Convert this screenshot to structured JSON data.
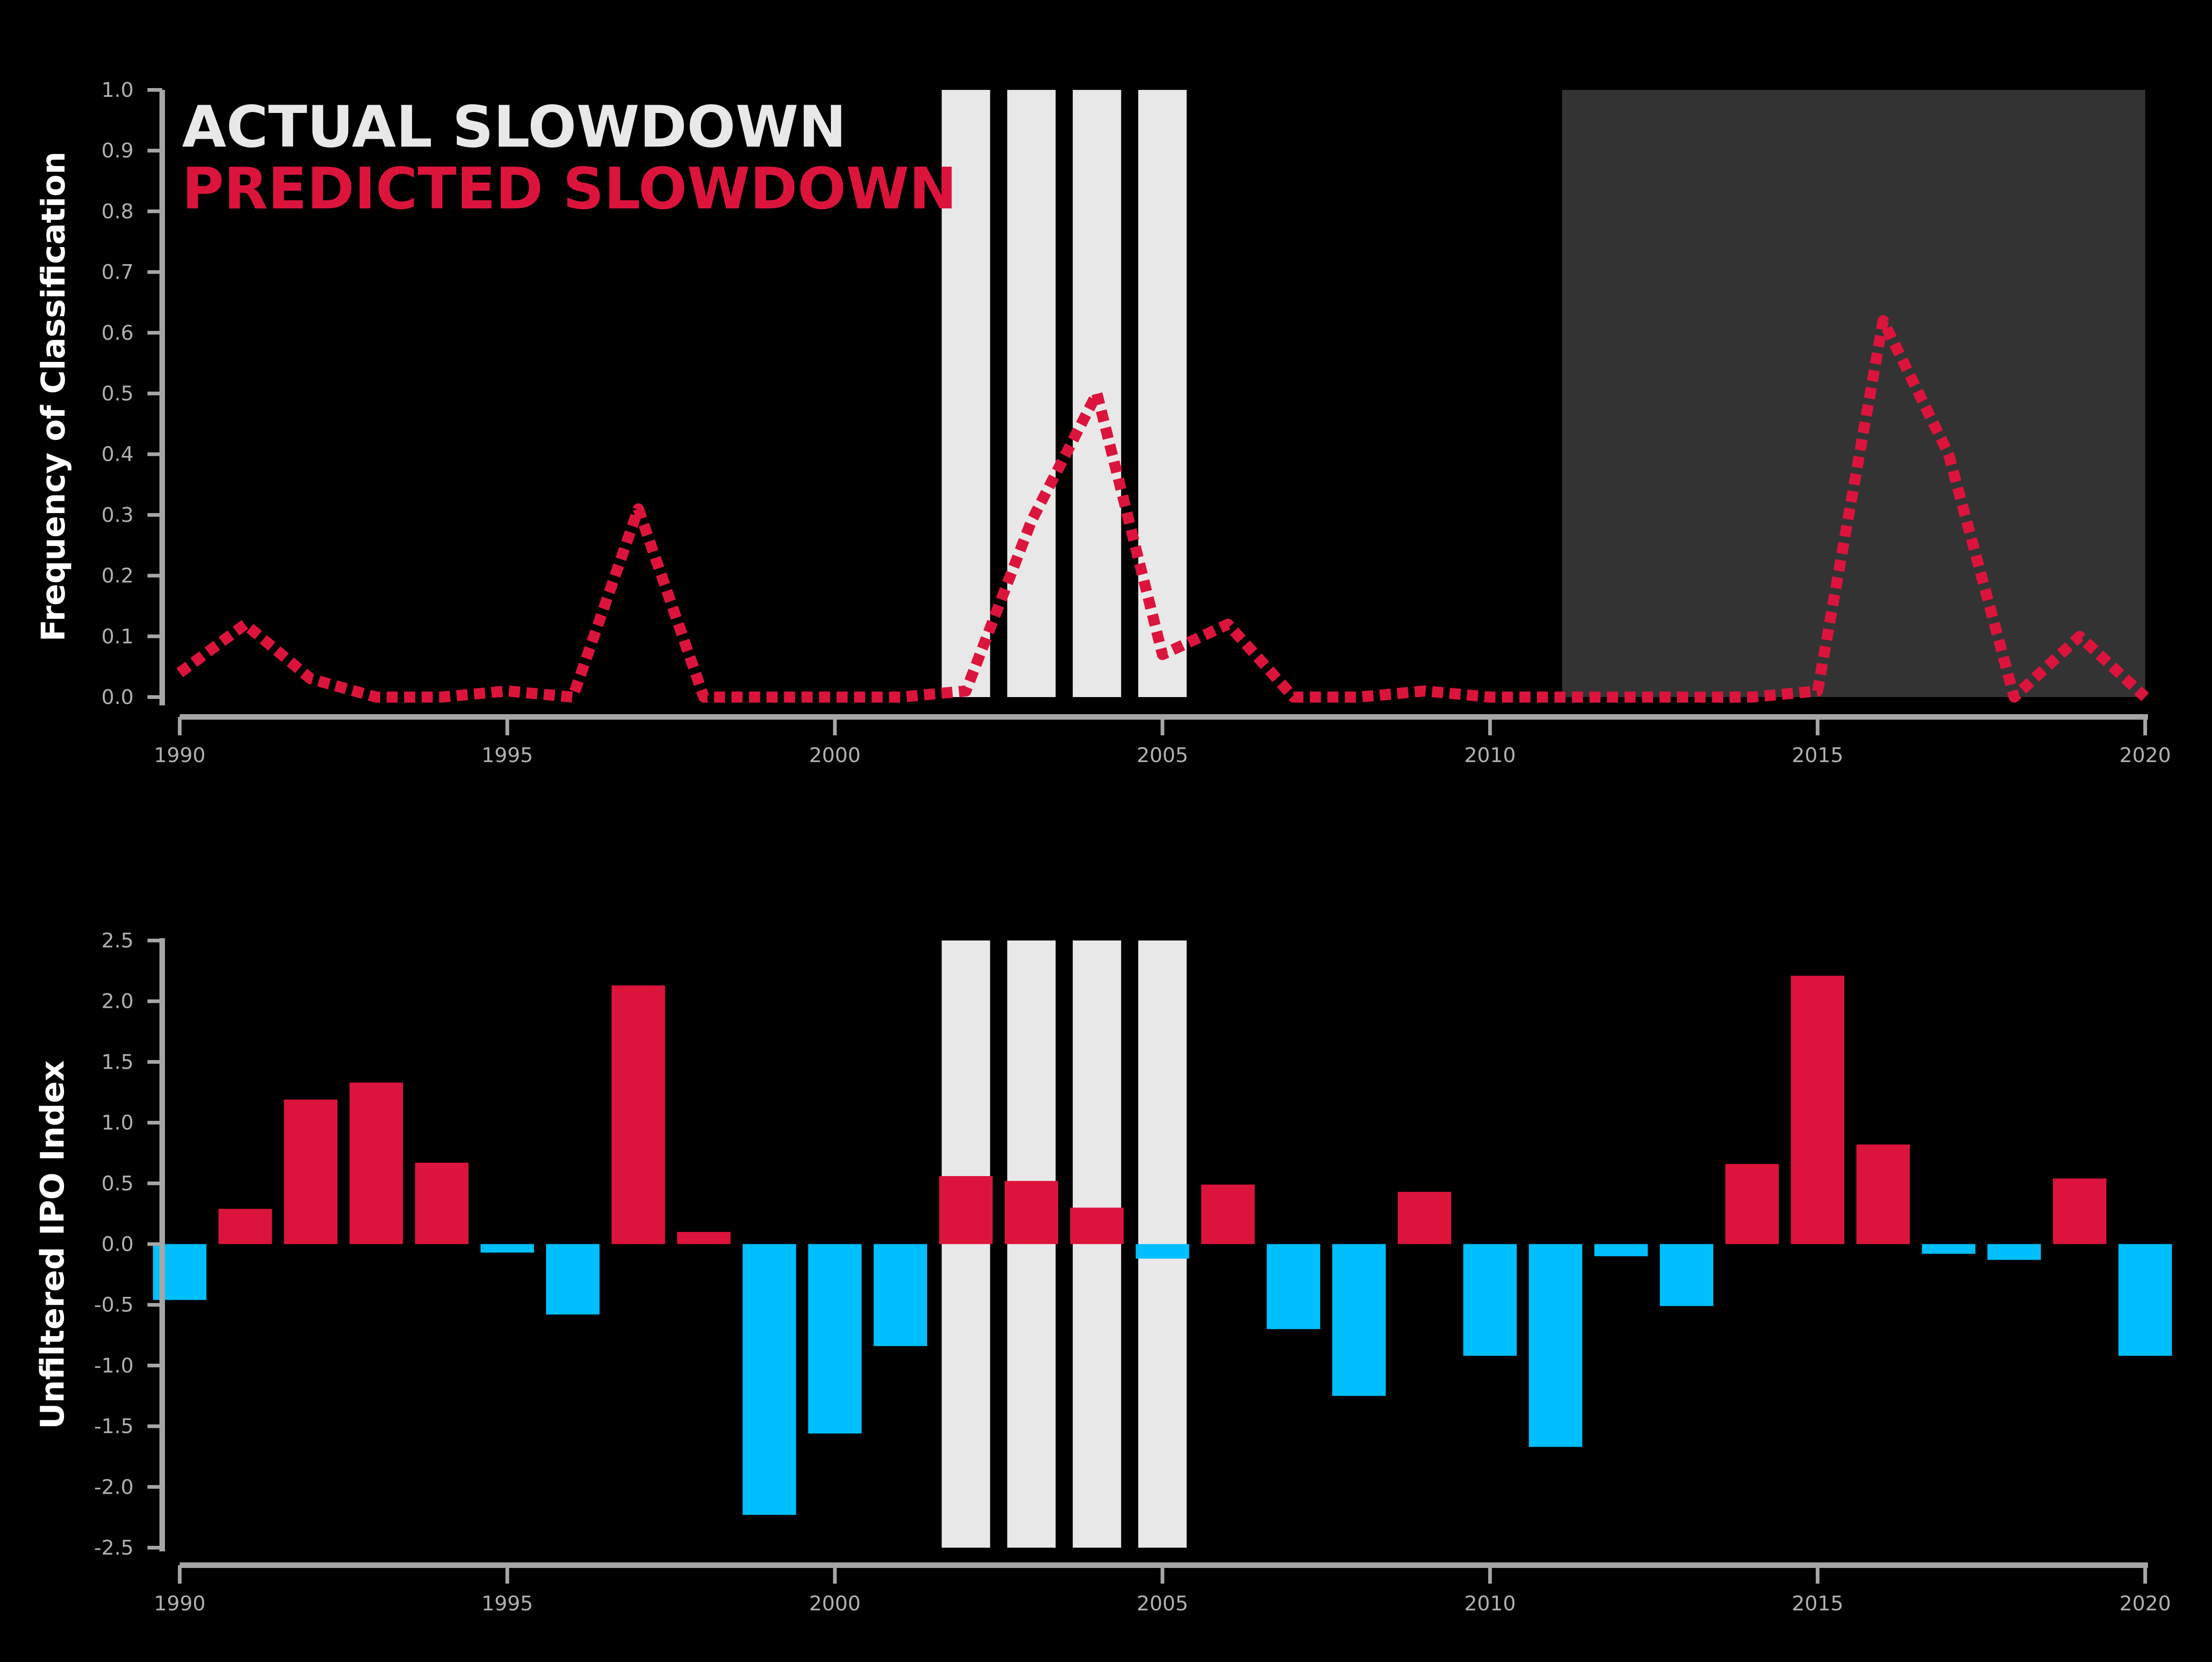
{
  "colors": {
    "background": "#000000",
    "axis": "#a6a6a6",
    "actual_slowdown": "#e8e8e8",
    "predicted_slowdown": "#dc143c",
    "forecast_region": "#333333",
    "positive_bar": "#dc143c",
    "negative_bar": "#00bfff"
  },
  "chart_data": [
    {
      "type": "line",
      "title": "",
      "xlabel": "",
      "ylabel": "Frequency of Classification",
      "xlim": [
        1990,
        2020
      ],
      "ylim": [
        0.0,
        1.0
      ],
      "x_ticks": [
        "1990",
        "1995",
        "2000",
        "2005",
        "2010",
        "2015",
        "2020"
      ],
      "y_ticks": [
        "0.0",
        "0.1",
        "0.2",
        "0.3",
        "0.4",
        "0.5",
        "0.6",
        "0.7",
        "0.8",
        "0.9",
        "1.0"
      ],
      "grid": false,
      "legend": {
        "position": "top-left",
        "entries": [
          "ACTUAL SLOWDOWN",
          "PREDICTED SLOWDOWN"
        ]
      },
      "actual_slowdown_years": [
        2002,
        2003,
        2004,
        2005
      ],
      "shaded_range": [
        2011.1,
        2020
      ],
      "series": [
        {
          "name": "PREDICTED SLOWDOWN",
          "style": "dotted",
          "x": [
            1990,
            1991,
            1992,
            1993,
            1994,
            1995,
            1996,
            1997,
            1998,
            1999,
            2000,
            2001,
            2002,
            2003,
            2004,
            2005,
            2006,
            2007,
            2008,
            2009,
            2010,
            2011,
            2012,
            2013,
            2014,
            2015,
            2016,
            2017,
            2018,
            2019,
            2020
          ],
          "values": [
            0.04,
            0.12,
            0.03,
            0.0,
            0.0,
            0.01,
            0.0,
            0.31,
            0.0,
            0.0,
            0.0,
            0.0,
            0.01,
            0.29,
            0.5,
            0.07,
            0.12,
            0.0,
            0.0,
            0.01,
            0.0,
            0.0,
            0.0,
            0.0,
            0.0,
            0.01,
            0.62,
            0.4,
            0.0,
            0.1,
            0.0
          ]
        }
      ]
    },
    {
      "type": "bar",
      "title": "",
      "xlabel": "",
      "ylabel": "Unfiltered IPO Index",
      "xlim": [
        1990,
        2020
      ],
      "ylim": [
        -2.5,
        2.5
      ],
      "x_ticks": [
        "1990",
        "1995",
        "2000",
        "2005",
        "2010",
        "2015",
        "2020"
      ],
      "y_ticks": [
        "-2.5",
        "-2.0",
        "-1.5",
        "-1.0",
        "-0.5",
        "0.0",
        "0.5",
        "1.0",
        "1.5",
        "2.0",
        "2.5"
      ],
      "grid": false,
      "actual_slowdown_years": [
        2002,
        2003,
        2004,
        2005
      ],
      "x": [
        1990,
        1991,
        1992,
        1993,
        1994,
        1995,
        1996,
        1997,
        1998,
        1999,
        2000,
        2001,
        2002,
        2003,
        2004,
        2005,
        2006,
        2007,
        2008,
        2009,
        2010,
        2011,
        2012,
        2013,
        2014,
        2015,
        2016,
        2017,
        2018,
        2019,
        2020
      ],
      "values": [
        -0.46,
        0.29,
        1.19,
        1.33,
        0.67,
        -0.07,
        -0.58,
        2.13,
        0.1,
        -2.23,
        -1.56,
        -0.84,
        0.56,
        0.52,
        0.3,
        -0.12,
        0.49,
        -0.7,
        -1.25,
        0.43,
        -0.92,
        -1.67,
        -0.1,
        -0.51,
        0.66,
        2.21,
        0.82,
        -0.08,
        -0.13,
        0.54,
        -0.92
      ]
    }
  ]
}
